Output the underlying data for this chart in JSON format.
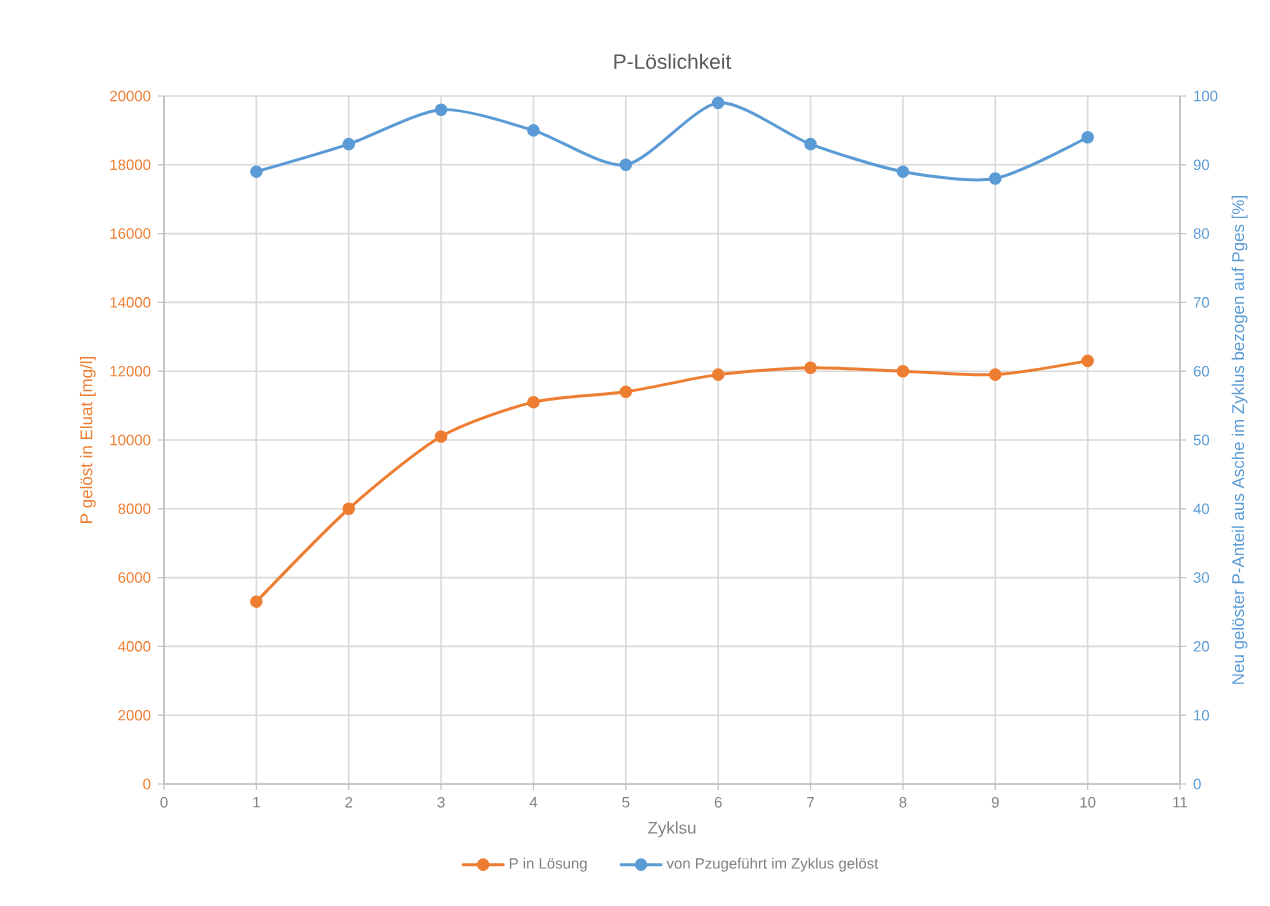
{
  "chart_data": {
    "type": "line",
    "title": "P-Löslichkeit",
    "xlabel": "Zyklsu",
    "ylabel": "P gelöst in Eluat [mg/l]",
    "y2label": "Neu gelöster P-Anteil aus Asche im Zyklus bezogen auf Pges [%]",
    "x": [
      1,
      2,
      3,
      4,
      5,
      6,
      7,
      8,
      9,
      10
    ],
    "series": [
      {
        "name": "P in Lösung",
        "color": "#ed7d31",
        "values": [
          5300,
          8000,
          10100,
          11100,
          11400,
          11900,
          12100,
          12000,
          11900,
          12300
        ]
      },
      {
        "name": "von Pzugeführt im Zyklus gelöst",
        "color": "#5b9bd5",
        "axis": "y2",
        "values": [
          89,
          93,
          98,
          95,
          90,
          99,
          93,
          89,
          88,
          94
        ]
      }
    ],
    "xlim": [
      0,
      11
    ],
    "xticks": [
      0,
      1,
      2,
      3,
      4,
      5,
      6,
      7,
      8,
      9,
      10,
      11
    ],
    "ylim": [
      0,
      20000
    ],
    "yticks": [
      0,
      2000,
      4000,
      6000,
      8000,
      10000,
      12000,
      14000,
      16000,
      18000,
      20000
    ],
    "y2lim": [
      0,
      100
    ],
    "y2ticks": [
      0,
      10,
      20,
      30,
      40,
      50,
      60,
      70,
      80,
      90,
      100
    ],
    "grid": true,
    "legend": "bottom",
    "marker": "circle"
  }
}
